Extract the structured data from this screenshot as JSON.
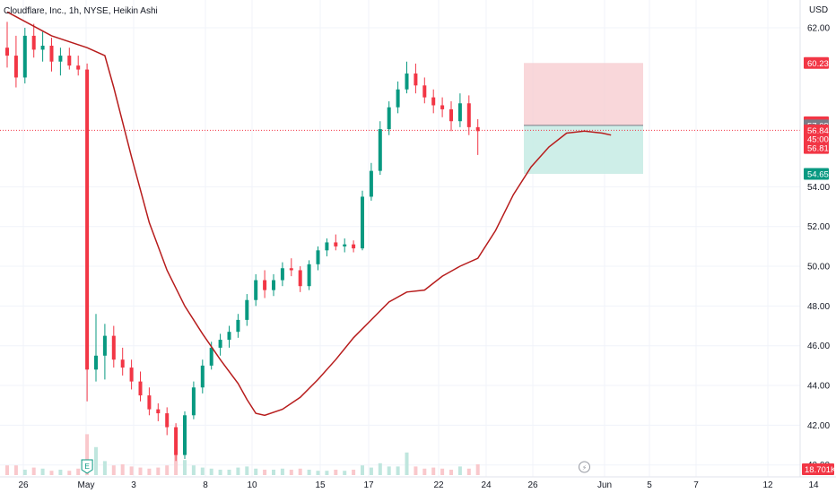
{
  "header": {
    "title": "Cloudflare, Inc., 1h, NYSE, Heikin Ashi"
  },
  "colors": {
    "up": "#089981",
    "down": "#f23645",
    "ma": "#b71c1c",
    "grid": "#f0f3fa",
    "axis_text": "#131722",
    "stop_zone": "#f7c9cd",
    "target_zone": "#c6ebe4",
    "volume_up": "#bfe6de",
    "volume_down": "#f9c8cc"
  },
  "chart_data": {
    "type": "candlestick",
    "style": "Heikin Ashi",
    "interval": "1h",
    "currency": "USD",
    "ylim": [
      39.4,
      63.4
    ],
    "y_ticks": [
      "40.00",
      "42.00",
      "44.00",
      "46.00",
      "48.00",
      "50.00",
      "52.00",
      "54.00",
      "62.00"
    ],
    "x_ticks": [
      "26",
      "May",
      "3",
      "8",
      "10",
      "15",
      "17",
      "22",
      "24",
      "26",
      "Jun",
      "5",
      "7",
      "12",
      "14"
    ],
    "grid": true,
    "price_tags": [
      {
        "label": "60.23",
        "value": 60.23,
        "color": "#f23645"
      },
      {
        "label": "57.25",
        "value": 57.25,
        "color": "#f23645"
      },
      {
        "label": "57.09",
        "value": 57.09,
        "color": "#787b86"
      },
      {
        "label": "56.84",
        "value": 56.84,
        "color": "#f23645"
      },
      {
        "label": "45:00",
        "value": 56.4,
        "color": "#f23645"
      },
      {
        "label": "56.81",
        "value": 55.95,
        "color": "#f23645"
      },
      {
        "label": "54.65",
        "value": 54.65,
        "color": "#089981"
      }
    ],
    "volume_tag": {
      "label": "18.701K",
      "color": "#f23645"
    },
    "current_price": 56.84,
    "position": {
      "entry": 57.09,
      "stop": 60.23,
      "target": 54.65,
      "direction": "short"
    },
    "markers": [
      {
        "label": "E",
        "type": "earnings",
        "x_index": 9
      },
      {
        "label": "⚡",
        "type": "dividend-split",
        "x_index": 65
      }
    ],
    "ma_line": [
      [
        0,
        62.8
      ],
      [
        5,
        61.6
      ],
      [
        9,
        61.0
      ],
      [
        11,
        60.6
      ],
      [
        12,
        59.0
      ],
      [
        14,
        55.5
      ],
      [
        16,
        52.2
      ],
      [
        18,
        49.8
      ],
      [
        20,
        48.0
      ],
      [
        22,
        46.6
      ],
      [
        24,
        45.3
      ],
      [
        26,
        44.1
      ],
      [
        27,
        43.3
      ],
      [
        28,
        42.6
      ],
      [
        29,
        42.5
      ],
      [
        31,
        42.8
      ],
      [
        33,
        43.4
      ],
      [
        35,
        44.3
      ],
      [
        37,
        45.3
      ],
      [
        39,
        46.4
      ],
      [
        41,
        47.3
      ],
      [
        43,
        48.2
      ],
      [
        45,
        48.7
      ],
      [
        47,
        48.8
      ],
      [
        49,
        49.5
      ],
      [
        51,
        50.0
      ],
      [
        53,
        50.4
      ],
      [
        55,
        51.8
      ],
      [
        57,
        53.6
      ],
      [
        59,
        55.0
      ],
      [
        61,
        56.0
      ],
      [
        63,
        56.7
      ],
      [
        65,
        56.8
      ],
      [
        67,
        56.7
      ],
      [
        68,
        56.6
      ]
    ],
    "candles": [
      {
        "o": 61.0,
        "h": 62.3,
        "l": 60.0,
        "c": 60.6
      },
      {
        "o": 60.6,
        "h": 61.6,
        "l": 59.0,
        "c": 59.5
      },
      {
        "o": 59.5,
        "h": 62.0,
        "l": 59.2,
        "c": 61.6
      },
      {
        "o": 61.6,
        "h": 62.2,
        "l": 60.5,
        "c": 60.9
      },
      {
        "o": 60.9,
        "h": 61.8,
        "l": 60.3,
        "c": 61.1
      },
      {
        "o": 61.1,
        "h": 61.5,
        "l": 59.8,
        "c": 60.3
      },
      {
        "o": 60.3,
        "h": 61.0,
        "l": 59.6,
        "c": 60.6
      },
      {
        "o": 60.6,
        "h": 61.0,
        "l": 59.9,
        "c": 60.1
      },
      {
        "o": 60.1,
        "h": 60.6,
        "l": 59.6,
        "c": 59.9
      },
      {
        "o": 59.9,
        "h": 60.2,
        "l": 43.2,
        "c": 44.8
      },
      {
        "o": 44.8,
        "h": 47.6,
        "l": 44.2,
        "c": 45.5
      },
      {
        "o": 45.5,
        "h": 47.1,
        "l": 44.3,
        "c": 46.5
      },
      {
        "o": 46.5,
        "h": 47.0,
        "l": 44.9,
        "c": 45.3
      },
      {
        "o": 45.3,
        "h": 45.9,
        "l": 44.5,
        "c": 44.9
      },
      {
        "o": 44.9,
        "h": 45.3,
        "l": 43.8,
        "c": 44.2
      },
      {
        "o": 44.2,
        "h": 44.7,
        "l": 43.2,
        "c": 43.5
      },
      {
        "o": 43.5,
        "h": 43.9,
        "l": 42.5,
        "c": 42.8
      },
      {
        "o": 42.8,
        "h": 43.1,
        "l": 42.2,
        "c": 42.6
      },
      {
        "o": 42.6,
        "h": 42.9,
        "l": 41.5,
        "c": 41.9
      },
      {
        "o": 41.9,
        "h": 42.1,
        "l": 40.2,
        "c": 40.5
      },
      {
        "o": 40.5,
        "h": 42.7,
        "l": 40.3,
        "c": 42.5
      },
      {
        "o": 42.5,
        "h": 44.2,
        "l": 42.3,
        "c": 43.9
      },
      {
        "o": 43.9,
        "h": 45.3,
        "l": 43.6,
        "c": 45.0
      },
      {
        "o": 45.0,
        "h": 46.2,
        "l": 44.8,
        "c": 45.9
      },
      {
        "o": 45.9,
        "h": 46.6,
        "l": 45.5,
        "c": 46.3
      },
      {
        "o": 46.3,
        "h": 47.0,
        "l": 45.9,
        "c": 46.7
      },
      {
        "o": 46.7,
        "h": 47.6,
        "l": 46.4,
        "c": 47.3
      },
      {
        "o": 47.3,
        "h": 48.6,
        "l": 47.0,
        "c": 48.3
      },
      {
        "o": 48.3,
        "h": 49.6,
        "l": 48.0,
        "c": 49.3
      },
      {
        "o": 49.3,
        "h": 49.8,
        "l": 48.4,
        "c": 48.8
      },
      {
        "o": 48.8,
        "h": 49.6,
        "l": 48.5,
        "c": 49.3
      },
      {
        "o": 49.3,
        "h": 50.2,
        "l": 49.0,
        "c": 49.9
      },
      {
        "o": 49.9,
        "h": 50.4,
        "l": 49.5,
        "c": 49.8
      },
      {
        "o": 49.8,
        "h": 50.0,
        "l": 48.7,
        "c": 49.0
      },
      {
        "o": 49.0,
        "h": 50.3,
        "l": 48.8,
        "c": 50.1
      },
      {
        "o": 50.1,
        "h": 51.0,
        "l": 49.8,
        "c": 50.8
      },
      {
        "o": 50.8,
        "h": 51.4,
        "l": 50.5,
        "c": 51.2
      },
      {
        "o": 51.2,
        "h": 51.6,
        "l": 50.8,
        "c": 51.0
      },
      {
        "o": 51.0,
        "h": 51.4,
        "l": 50.7,
        "c": 51.1
      },
      {
        "o": 51.1,
        "h": 51.3,
        "l": 50.7,
        "c": 50.9
      },
      {
        "o": 50.9,
        "h": 53.8,
        "l": 50.8,
        "c": 53.5
      },
      {
        "o": 53.5,
        "h": 55.2,
        "l": 53.3,
        "c": 54.8
      },
      {
        "o": 54.8,
        "h": 57.3,
        "l": 54.6,
        "c": 56.9
      },
      {
        "o": 56.9,
        "h": 58.3,
        "l": 56.6,
        "c": 58.0
      },
      {
        "o": 58.0,
        "h": 59.3,
        "l": 57.7,
        "c": 58.9
      },
      {
        "o": 58.9,
        "h": 60.3,
        "l": 58.7,
        "c": 59.7
      },
      {
        "o": 59.7,
        "h": 60.2,
        "l": 58.7,
        "c": 59.1
      },
      {
        "o": 59.1,
        "h": 59.5,
        "l": 58.2,
        "c": 58.5
      },
      {
        "o": 58.5,
        "h": 58.9,
        "l": 57.7,
        "c": 58.1
      },
      {
        "o": 58.1,
        "h": 58.5,
        "l": 57.5,
        "c": 57.9
      },
      {
        "o": 57.9,
        "h": 58.3,
        "l": 56.8,
        "c": 57.3
      },
      {
        "o": 57.3,
        "h": 58.7,
        "l": 57.0,
        "c": 58.2
      },
      {
        "o": 58.2,
        "h": 58.6,
        "l": 56.6,
        "c": 57.0
      },
      {
        "o": 57.0,
        "h": 57.4,
        "l": 55.6,
        "c": 56.8
      }
    ],
    "volumes": [
      0.9,
      0.9,
      0.5,
      0.7,
      0.6,
      0.4,
      0.5,
      0.4,
      0.6,
      3.8,
      2.6,
      1.3,
      0.9,
      1.0,
      0.8,
      0.7,
      0.6,
      0.7,
      0.9,
      1.9,
      1.4,
      0.9,
      0.7,
      0.6,
      0.5,
      0.5,
      0.7,
      0.8,
      0.6,
      0.5,
      0.5,
      0.6,
      0.5,
      0.6,
      0.5,
      0.4,
      0.4,
      0.5,
      0.4,
      0.5,
      0.9,
      0.7,
      1.1,
      0.8,
      0.8,
      2.1,
      0.8,
      0.6,
      0.7,
      0.6,
      0.5,
      0.8,
      0.6,
      1.0
    ]
  }
}
